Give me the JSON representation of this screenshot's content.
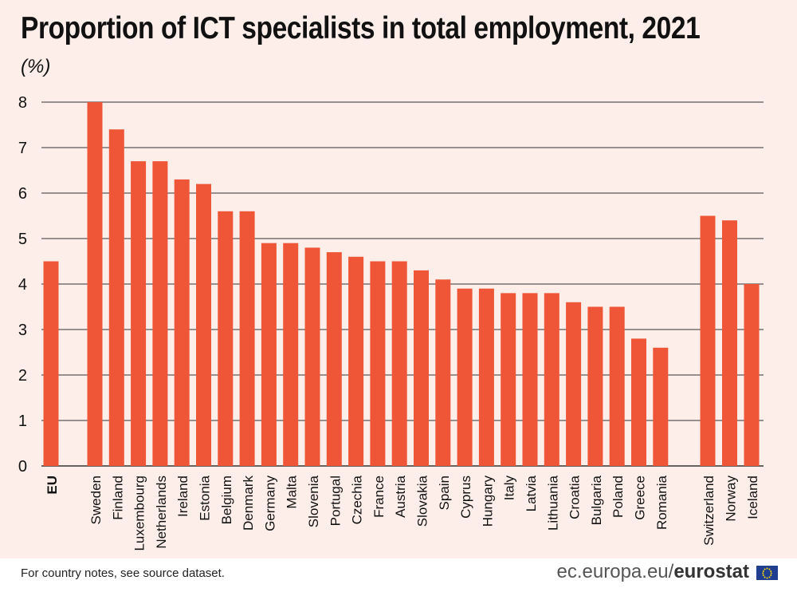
{
  "title": "Proportion of ICT specialists in total employment, 2021",
  "unit": "(%)",
  "footer": {
    "note": "For country notes, see source dataset.",
    "source_prefix": "ec.europa.eu/",
    "source_brand": "eurostat"
  },
  "colors": {
    "bar": "#ee5637",
    "background": "#fdeeea",
    "grid": "#333333"
  },
  "icons": {
    "flag": "eu-flag-icon"
  },
  "chart_data": {
    "type": "bar",
    "title": "Proportion of ICT specialists in total employment, 2021",
    "ylabel": "(%)",
    "ylim": [
      0,
      8
    ],
    "yticks": [
      "0",
      "1",
      "2",
      "3",
      "4",
      "5",
      "6",
      "7",
      "8"
    ],
    "grid": true,
    "categories": [
      "EU",
      "Sweden",
      "Finland",
      "Luxembourg",
      "Netherlands",
      "Ireland",
      "Estonia",
      "Belgium",
      "Denmark",
      "Germany",
      "Malta",
      "Slovenia",
      "Portugal",
      "Czechia",
      "France",
      "Austria",
      "Slovakia",
      "Spain",
      "Cyprus",
      "Hungary",
      "Italy",
      "Latvia",
      "Lithuania",
      "Croatia",
      "Bulgaria",
      "Poland",
      "Greece",
      "Romania",
      "Switzerland",
      "Norway",
      "Iceland"
    ],
    "values": [
      4.5,
      8.0,
      7.4,
      6.7,
      6.7,
      6.3,
      6.2,
      5.6,
      5.6,
      4.9,
      4.9,
      4.8,
      4.7,
      4.6,
      4.5,
      4.5,
      4.3,
      4.1,
      3.9,
      3.9,
      3.8,
      3.8,
      3.8,
      3.6,
      3.5,
      3.5,
      2.8,
      2.6,
      5.5,
      5.4,
      4.0
    ]
  }
}
